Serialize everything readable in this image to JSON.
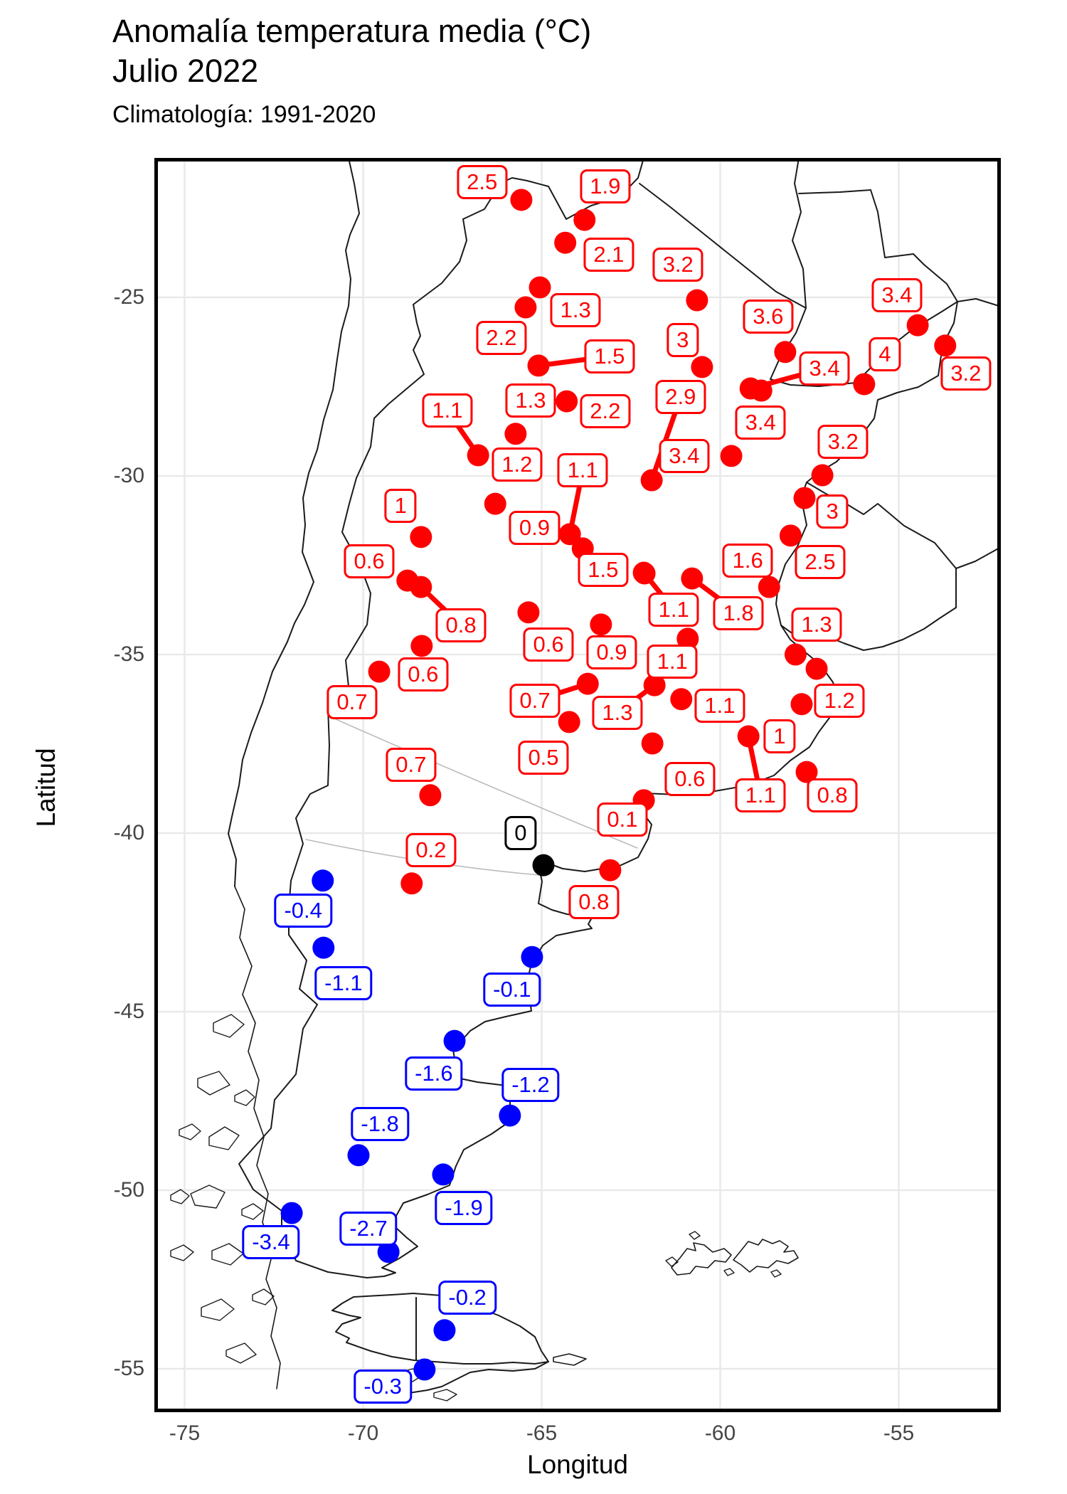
{
  "title": {
    "line1": "Anomalía temperatura media (°C)",
    "line2": "Julio 2022"
  },
  "subtitle": "Climatología: 1991-2020",
  "axes": {
    "x": {
      "label": "Longitud",
      "ticks": [
        -75,
        -70,
        -65,
        -60,
        -55
      ],
      "tick_labels": [
        "-75",
        "-70",
        "-65",
        "-60",
        "-55"
      ]
    },
    "y": {
      "label": "Latitud",
      "ticks": [
        -25,
        -30,
        -35,
        -40,
        -45,
        -50,
        -55
      ],
      "tick_labels": [
        "-25",
        "-30",
        "-35",
        "-40",
        "-45",
        "-50",
        "-55"
      ]
    }
  },
  "colors": {
    "positive": "#ff0000",
    "negative": "#0000ff",
    "zero": "#000000",
    "grid": "#e9e9e9",
    "tick_text": "#454545",
    "map_line": "#1a1a1a",
    "river_line": "#bbbbbb",
    "panel_bg": "#ffffff"
  },
  "chart_data": {
    "type": "scatter",
    "subtype": "geographic-anomaly-map",
    "title": "Anomalía temperatura media (°C) Julio 2022",
    "xlabel": "Longitud",
    "ylabel": "Latitud",
    "xlim": [
      -75.8,
      -52.2
    ],
    "ylim": [
      -56.2,
      -21.1
    ],
    "grid": true,
    "units": "°C",
    "stations": [
      {
        "v": "2.5",
        "lon": -65.57,
        "lat": -22.27,
        "llon": -66.67,
        "llat": -21.77,
        "line": false
      },
      {
        "v": "1.9",
        "lon": -63.8,
        "lat": -22.83,
        "llon": -63.22,
        "llat": -21.89,
        "line": false
      },
      {
        "v": "2.1",
        "lon": -64.34,
        "lat": -23.47,
        "llon": -63.12,
        "llat": -23.8,
        "line": false
      },
      {
        "v": "3.2",
        "lon": -60.65,
        "lat": -25.08,
        "llon": -61.18,
        "llat": -24.08,
        "line": false
      },
      {
        "v": "1.3",
        "lon": -65.05,
        "lat": -24.72,
        "llon": -64.05,
        "llat": -25.36,
        "line": false
      },
      {
        "v": "2.2",
        "lon": -65.45,
        "lat": -25.28,
        "llon": -66.13,
        "llat": -26.14,
        "line": false
      },
      {
        "v": "3.6",
        "lon": -58.18,
        "lat": -26.53,
        "llon": -58.66,
        "llat": -25.54,
        "line": false
      },
      {
        "v": "3.4",
        "lon": -54.47,
        "lat": -25.78,
        "llon": -55.05,
        "llat": -24.94,
        "line": false
      },
      {
        "v": "4",
        "lon": -55.97,
        "lat": -27.43,
        "llon": -55.39,
        "llat": -26.59,
        "line": false
      },
      {
        "v": "3.2",
        "lon": -53.7,
        "lat": -26.35,
        "llon": -53.12,
        "llat": -27.13,
        "line": false
      },
      {
        "v": "3",
        "lon": -60.51,
        "lat": -26.95,
        "llon": -61.05,
        "llat": -26.2,
        "line": false
      },
      {
        "v": "3.4",
        "lon": -59.15,
        "lat": -27.55,
        "llon": -57.08,
        "llat": -26.99,
        "line": true
      },
      {
        "v": "3.4",
        "lon": -58.85,
        "lat": -27.61,
        "llon": -58.87,
        "llat": -28.51,
        "line": false
      },
      {
        "v": "2.9",
        "lon": -61.92,
        "lat": -30.12,
        "llon": -61.11,
        "llat": -27.79,
        "line": true
      },
      {
        "v": "3.4",
        "lon": -59.69,
        "lat": -29.44,
        "llon": -61.01,
        "llat": -29.44,
        "line": false
      },
      {
        "v": "3.2",
        "lon": -57.14,
        "lat": -29.98,
        "llon": -56.56,
        "llat": -29.04,
        "line": false
      },
      {
        "v": "3",
        "lon": -57.64,
        "lat": -30.62,
        "llon": -56.86,
        "llat": -31.0,
        "line": false
      },
      {
        "v": "2.5",
        "lon": -58.03,
        "lat": -31.67,
        "llon": -57.2,
        "llat": -32.41,
        "line": false
      },
      {
        "v": "1.6",
        "lon": -58.63,
        "lat": -33.11,
        "llon": -59.23,
        "llat": -32.37,
        "line": false
      },
      {
        "v": "1.5",
        "lon": -65.09,
        "lat": -26.91,
        "llon": -63.1,
        "llat": -26.65,
        "line": true
      },
      {
        "v": "2.2",
        "lon": -64.3,
        "lat": -27.91,
        "llon": -63.22,
        "llat": -28.19,
        "line": false
      },
      {
        "v": "1.3",
        "lon": -65.73,
        "lat": -28.82,
        "llon": -65.31,
        "llat": -27.89,
        "line": false
      },
      {
        "v": "1.1",
        "lon": -66.78,
        "lat": -29.42,
        "llon": -67.64,
        "llat": -28.17,
        "line": true
      },
      {
        "v": "1.2",
        "lon": -66.3,
        "lat": -30.78,
        "llon": -65.69,
        "llat": -29.68,
        "line": false
      },
      {
        "v": "1.1",
        "lon": -64.21,
        "lat": -31.63,
        "llon": -63.85,
        "llat": -29.84,
        "line": true
      },
      {
        "v": "0.9",
        "lon": -63.85,
        "lat": -32.03,
        "llon": -65.2,
        "llat": -31.45,
        "line": false
      },
      {
        "v": "1",
        "lon": -68.38,
        "lat": -31.71,
        "llon": -68.95,
        "llat": -30.84,
        "line": false
      },
      {
        "v": "0.6",
        "lon": -68.76,
        "lat": -32.93,
        "llon": -69.83,
        "llat": -32.39,
        "line": false
      },
      {
        "v": "0.8",
        "lon": -68.38,
        "lat": -33.11,
        "llon": -67.26,
        "llat": -34.18,
        "line": true
      },
      {
        "v": "0.6",
        "lon": -65.37,
        "lat": -33.82,
        "llon": -64.81,
        "llat": -34.72,
        "line": false
      },
      {
        "v": "1.5",
        "lon": -62.14,
        "lat": -32.71,
        "llon": -63.28,
        "llat": -32.63,
        "line": false
      },
      {
        "v": "1.1",
        "lon": -62.12,
        "lat": -32.73,
        "llon": -61.3,
        "llat": -33.75,
        "line": true
      },
      {
        "v": "0.9",
        "lon": -63.34,
        "lat": -34.16,
        "llon": -63.04,
        "llat": -34.94,
        "line": false
      },
      {
        "v": "1.1",
        "lon": -60.91,
        "lat": -34.56,
        "llon": -61.34,
        "llat": -35.2,
        "line": false
      },
      {
        "v": "1.8",
        "lon": -60.79,
        "lat": -32.87,
        "llon": -59.49,
        "llat": -33.84,
        "line": true
      },
      {
        "v": "1.3",
        "lon": -61.84,
        "lat": -35.86,
        "llon": -62.88,
        "llat": -36.63,
        "line": true
      },
      {
        "v": "1.1",
        "lon": -61.09,
        "lat": -36.25,
        "llon": -60.01,
        "llat": -36.43,
        "line": false
      },
      {
        "v": "0.6",
        "lon": -61.9,
        "lat": -37.49,
        "llon": -60.85,
        "llat": -38.48,
        "line": false
      },
      {
        "v": "1.3",
        "lon": -57.89,
        "lat": -35.0,
        "llon": -57.3,
        "llat": -34.16,
        "line": false
      },
      {
        "v": "1.2",
        "lon": -57.3,
        "lat": -35.4,
        "llon": -56.66,
        "llat": -36.29,
        "line": false
      },
      {
        "v": "1",
        "lon": -57.72,
        "lat": -36.39,
        "llon": -58.34,
        "llat": -37.29,
        "line": false
      },
      {
        "v": "1.1",
        "lon": -59.21,
        "lat": -37.29,
        "llon": -58.87,
        "llat": -38.94,
        "line": true
      },
      {
        "v": "0.8",
        "lon": -57.58,
        "lat": -38.29,
        "llon": -56.86,
        "llat": -38.94,
        "line": false
      },
      {
        "v": "0.6",
        "lon": -68.36,
        "lat": -34.76,
        "llon": -68.32,
        "llat": -35.56,
        "line": false
      },
      {
        "v": "0.7",
        "lon": -69.55,
        "lat": -35.48,
        "llon": -70.31,
        "llat": -36.33,
        "line": false
      },
      {
        "v": "0.7",
        "lon": -63.71,
        "lat": -35.82,
        "llon": -65.19,
        "llat": -36.29,
        "line": true
      },
      {
        "v": "0.5",
        "lon": -64.23,
        "lat": -36.89,
        "llon": -64.95,
        "llat": -37.89,
        "line": false
      },
      {
        "v": "0.7",
        "lon": -68.12,
        "lat": -38.94,
        "llon": -68.66,
        "llat": -38.09,
        "line": false
      },
      {
        "v": "0.2",
        "lon": -68.64,
        "lat": -41.41,
        "llon": -68.1,
        "llat": -40.48,
        "line": false
      },
      {
        "v": "0.1",
        "lon": -62.14,
        "lat": -39.08,
        "llon": -62.74,
        "llat": -39.62,
        "line": false
      },
      {
        "v": "0.8",
        "lon": -63.08,
        "lat": -41.04,
        "llon": -63.54,
        "llat": -41.93,
        "line": false
      },
      {
        "v": "0",
        "lon": -64.95,
        "lat": -40.9,
        "llon": -65.59,
        "llat": -40.0,
        "line": false
      },
      {
        "v": "-0.4",
        "lon": -71.13,
        "lat": -41.33,
        "llon": -71.68,
        "llat": -42.17,
        "line": false
      },
      {
        "v": "-1.1",
        "lon": -71.11,
        "lat": -43.21,
        "llon": -70.55,
        "llat": -44.2,
        "line": false
      },
      {
        "v": "-0.1",
        "lon": -65.27,
        "lat": -43.47,
        "llon": -65.83,
        "llat": -44.38,
        "line": false
      },
      {
        "v": "-1.6",
        "lon": -67.44,
        "lat": -45.82,
        "llon": -68.02,
        "llat": -46.73,
        "line": false
      },
      {
        "v": "-1.2",
        "lon": -65.89,
        "lat": -47.91,
        "llon": -65.31,
        "llat": -47.05,
        "line": false
      },
      {
        "v": "-1.8",
        "lon": -70.13,
        "lat": -49.02,
        "llon": -69.53,
        "llat": -48.15,
        "line": false
      },
      {
        "v": "-1.9",
        "lon": -67.76,
        "lat": -49.56,
        "llon": -67.18,
        "llat": -50.5,
        "line": false
      },
      {
        "v": "-3.4",
        "lon": -72.0,
        "lat": -50.64,
        "llon": -72.58,
        "llat": -51.45,
        "line": false
      },
      {
        "v": "-2.7",
        "lon": -69.29,
        "lat": -51.73,
        "llon": -69.85,
        "llat": -51.08,
        "line": false
      },
      {
        "v": "-0.2",
        "lon": -67.72,
        "lat": -53.92,
        "llon": -67.08,
        "llat": -53.01,
        "line": false
      },
      {
        "v": "-0.3",
        "lon": -68.28,
        "lat": -55.02,
        "llon": -69.45,
        "llat": -55.5,
        "line": false
      }
    ]
  }
}
